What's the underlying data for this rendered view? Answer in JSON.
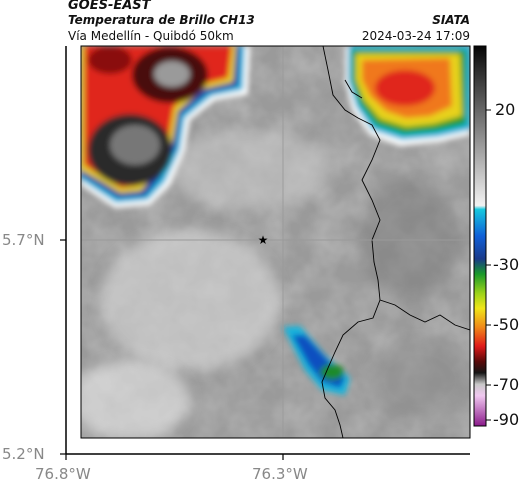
{
  "header": {
    "satellite": "GOES-EAST",
    "product": "Temperatura de Brillo CH13",
    "route": "Vía Medellín - Quibdó 50km",
    "org": "SIATA",
    "timestamp": "2024-03-24 17:09"
  },
  "axes": {
    "lat_labels": [
      "5.7°N",
      "5.2°N"
    ],
    "lon_labels": [
      "76.8°W",
      "76.3°W"
    ]
  },
  "colorbar": {
    "tick_labels": [
      "20",
      "-30",
      "-50",
      "-70",
      "-90"
    ]
  },
  "colors": {
    "grid": "#9a9a9a",
    "frame": "#000000"
  }
}
